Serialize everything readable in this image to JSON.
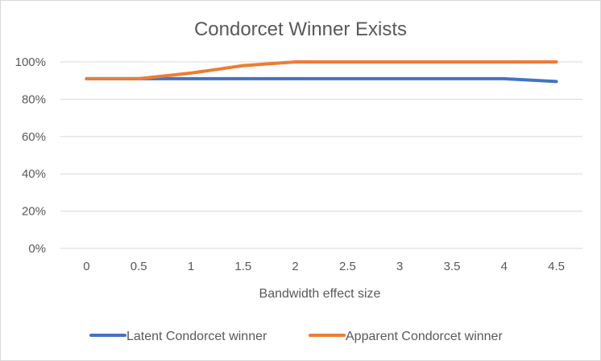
{
  "chart_data": {
    "type": "line",
    "title": "Condorcet Winner Exists",
    "xlabel": "Bandwidth effect size",
    "ylabel": "",
    "categories": [
      "0",
      "0.5",
      "1",
      "1.5",
      "2",
      "2.5",
      "3",
      "3.5",
      "4",
      "4.5"
    ],
    "ylim": [
      0,
      1
    ],
    "yticks": [
      "0%",
      "20%",
      "40%",
      "60%",
      "80%",
      "100%"
    ],
    "grid": true,
    "legend_position": "bottom",
    "series": [
      {
        "name": "Latent Condorcet winner",
        "color": "#4472C4",
        "values": [
          0.91,
          0.91,
          0.91,
          0.91,
          0.91,
          0.91,
          0.91,
          0.91,
          0.91,
          0.895
        ]
      },
      {
        "name": "Apparent Condorcet winner",
        "color": "#ED7D31",
        "values": [
          0.91,
          0.91,
          0.94,
          0.98,
          1.0,
          1.0,
          1.0,
          1.0,
          1.0,
          1.0
        ]
      }
    ]
  }
}
